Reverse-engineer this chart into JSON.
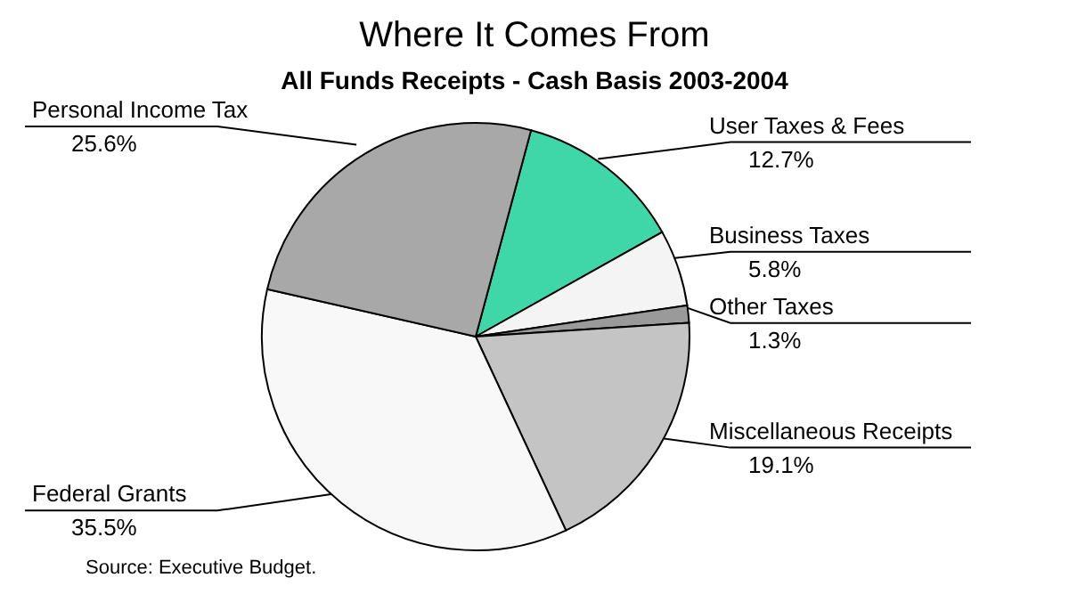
{
  "chart_data": {
    "type": "pie",
    "title": "Where It Comes From",
    "subtitle": "All Funds Receipts - Cash Basis 2003-2004",
    "categories": [
      "User Taxes & Fees",
      "Business Taxes",
      "Other Taxes",
      "Miscellaneous Receipts",
      "Federal Grants",
      "Personal Income Tax"
    ],
    "values": [
      12.7,
      5.8,
      1.3,
      19.1,
      35.5,
      25.6
    ],
    "value_labels": [
      "12.7%",
      "5.8%",
      "1.3%",
      "19.1%",
      "35.5%",
      "25.6%"
    ],
    "colors": [
      "#3fd6a8",
      "#f4f4f4",
      "#9a9a9a",
      "#c4c4c4",
      "#f8f8f8",
      "#a8a8a8"
    ],
    "annotations": [
      "Source:  Executive Budget."
    ]
  }
}
